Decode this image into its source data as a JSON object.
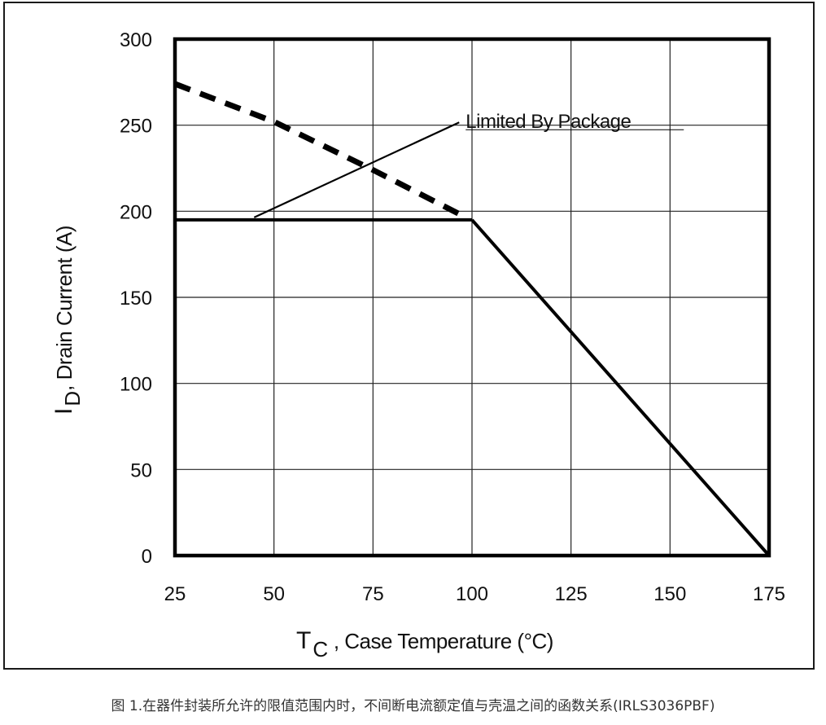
{
  "caption": "图 1.在器件封装所允许的限值范围内时，不间断电流额定值与壳温之间的函数关系(IRLS3036PBF)",
  "chart_data": {
    "type": "line",
    "title": "",
    "xlabel": {
      "main": "T",
      "sub": "C",
      "rest": " , Case Temperature (°C)"
    },
    "ylabel": {
      "main": "I",
      "sub": "D",
      "rest": ",  Drain Current (A)"
    },
    "xlim": [
      25,
      175
    ],
    "ylim": [
      0,
      300
    ],
    "x_ticks": [
      25,
      50,
      75,
      100,
      125,
      150,
      175
    ],
    "y_ticks": [
      0,
      50,
      100,
      150,
      200,
      250,
      300
    ],
    "x_tick_labels": [
      "25",
      "50",
      "75",
      "100",
      "125",
      "150",
      "175"
    ],
    "y_tick_labels": [
      "0",
      "50",
      "100",
      "150",
      "200",
      "250",
      "300"
    ],
    "grid": true,
    "series": [
      {
        "style": "dashed",
        "x": [
          25,
          50,
          75,
          98
        ],
        "y": [
          274,
          252,
          224,
          197
        ]
      },
      {
        "style": "solid",
        "x": [
          25,
          100
        ],
        "y": [
          195,
          195
        ]
      },
      {
        "style": "solid",
        "x": [
          100,
          175
        ],
        "y": [
          195,
          0
        ]
      }
    ],
    "annotations": [
      {
        "text": "Limited By Package",
        "x": 45,
        "y": 195,
        "text_x": 98,
        "text_y": 254
      }
    ]
  }
}
